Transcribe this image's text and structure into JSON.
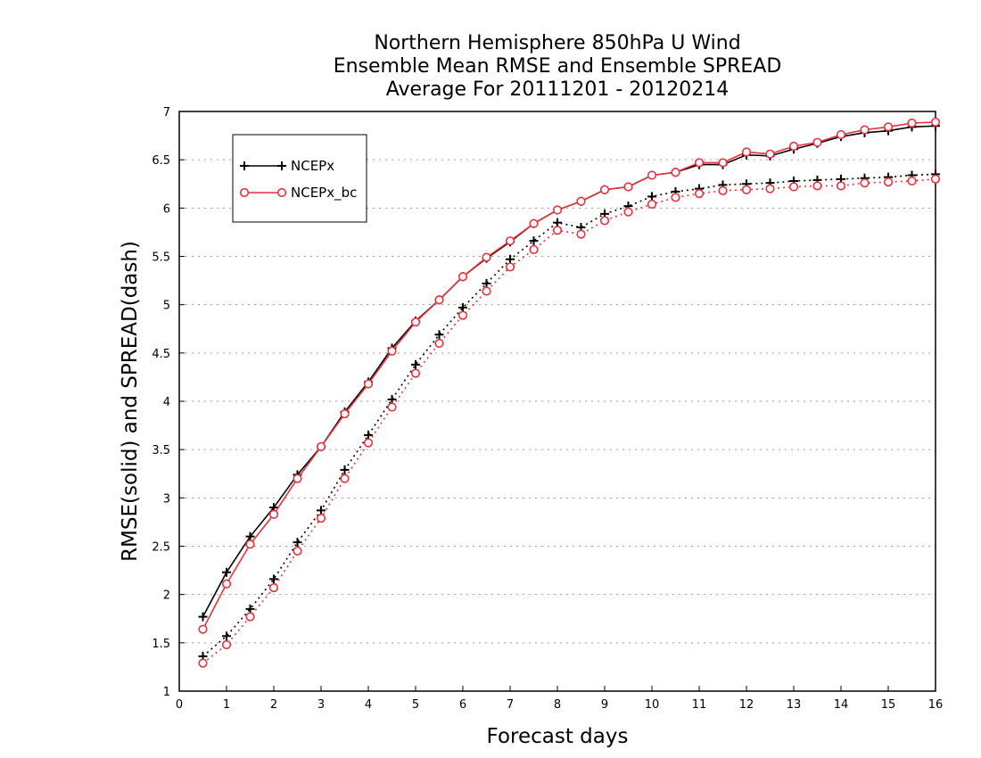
{
  "chart_data": {
    "type": "line",
    "title": [
      "Northern Hemisphere 850hPa U Wind",
      "Ensemble Mean RMSE and Ensemble SPREAD",
      "Average For 20111201 - 20120214"
    ],
    "xlabel": "Forecast days",
    "ylabel": "RMSE(solid) and SPREAD(dash)",
    "xlim": [
      0,
      16
    ],
    "ylim": [
      1,
      7
    ],
    "xticks": [
      "0",
      "1",
      "2",
      "3",
      "4",
      "5",
      "6",
      "7",
      "8",
      "9",
      "10",
      "11",
      "12",
      "13",
      "14",
      "15",
      "16"
    ],
    "yticks": [
      "1",
      "1.5",
      "2",
      "2.5",
      "3",
      "3.5",
      "4",
      "4.5",
      "5",
      "5.5",
      "6",
      "6.5",
      "7"
    ],
    "grid": "horizontal-dotted",
    "legend_position": "top-left",
    "x": [
      0.5,
      1,
      1.5,
      2,
      2.5,
      3,
      3.5,
      4,
      4.5,
      5,
      5.5,
      6,
      6.5,
      7,
      7.5,
      8,
      8.5,
      9,
      9.5,
      10,
      10.5,
      11,
      11.5,
      12,
      12.5,
      13,
      13.5,
      14,
      14.5,
      15,
      15.5,
      16
    ],
    "series": [
      {
        "name": "NCEPx",
        "metric": "RMSE",
        "style": "solid",
        "marker": "plus",
        "color": "#000000",
        "values": [
          1.77,
          2.23,
          2.6,
          2.9,
          3.24,
          3.53,
          3.89,
          4.2,
          4.55,
          4.83,
          5.05,
          5.29,
          5.48,
          5.65,
          5.84,
          5.98,
          6.07,
          6.19,
          6.22,
          6.34,
          6.37,
          6.45,
          6.45,
          6.55,
          6.54,
          6.61,
          6.67,
          6.74,
          6.78,
          6.8,
          6.84,
          6.85
        ]
      },
      {
        "name": "NCEPx_bc",
        "metric": "RMSE",
        "style": "solid",
        "marker": "circle",
        "color": "#e8323c",
        "values": [
          1.64,
          2.11,
          2.52,
          2.83,
          3.2,
          3.53,
          3.87,
          4.18,
          4.52,
          4.82,
          5.05,
          5.29,
          5.49,
          5.66,
          5.84,
          5.98,
          6.07,
          6.19,
          6.22,
          6.34,
          6.37,
          6.47,
          6.47,
          6.58,
          6.56,
          6.64,
          6.68,
          6.76,
          6.81,
          6.84,
          6.88,
          6.89
        ]
      },
      {
        "name": "NCEPx",
        "metric": "SPREAD",
        "style": "dash",
        "marker": "plus",
        "color": "#000000",
        "values": [
          1.36,
          1.57,
          1.85,
          2.16,
          2.54,
          2.87,
          3.29,
          3.65,
          4.02,
          4.38,
          4.69,
          4.97,
          5.22,
          5.47,
          5.66,
          5.85,
          5.8,
          5.94,
          6.02,
          6.12,
          6.17,
          6.2,
          6.24,
          6.25,
          6.26,
          6.28,
          6.29,
          6.3,
          6.31,
          6.32,
          6.34,
          6.35
        ]
      },
      {
        "name": "NCEPx_bc",
        "metric": "SPREAD",
        "style": "dash",
        "marker": "circle",
        "color": "#e8323c",
        "values": [
          1.29,
          1.48,
          1.77,
          2.07,
          2.45,
          2.79,
          3.2,
          3.57,
          3.94,
          4.29,
          4.6,
          4.89,
          5.14,
          5.39,
          5.57,
          5.77,
          5.73,
          5.87,
          5.96,
          6.04,
          6.11,
          6.15,
          6.18,
          6.19,
          6.2,
          6.22,
          6.23,
          6.23,
          6.26,
          6.27,
          6.28,
          6.3
        ]
      }
    ],
    "legend": [
      {
        "label": "NCEPx",
        "marker": "plus",
        "color": "#000000"
      },
      {
        "label": "NCEPx_bc",
        "marker": "circle",
        "color": "#e8323c"
      }
    ]
  }
}
